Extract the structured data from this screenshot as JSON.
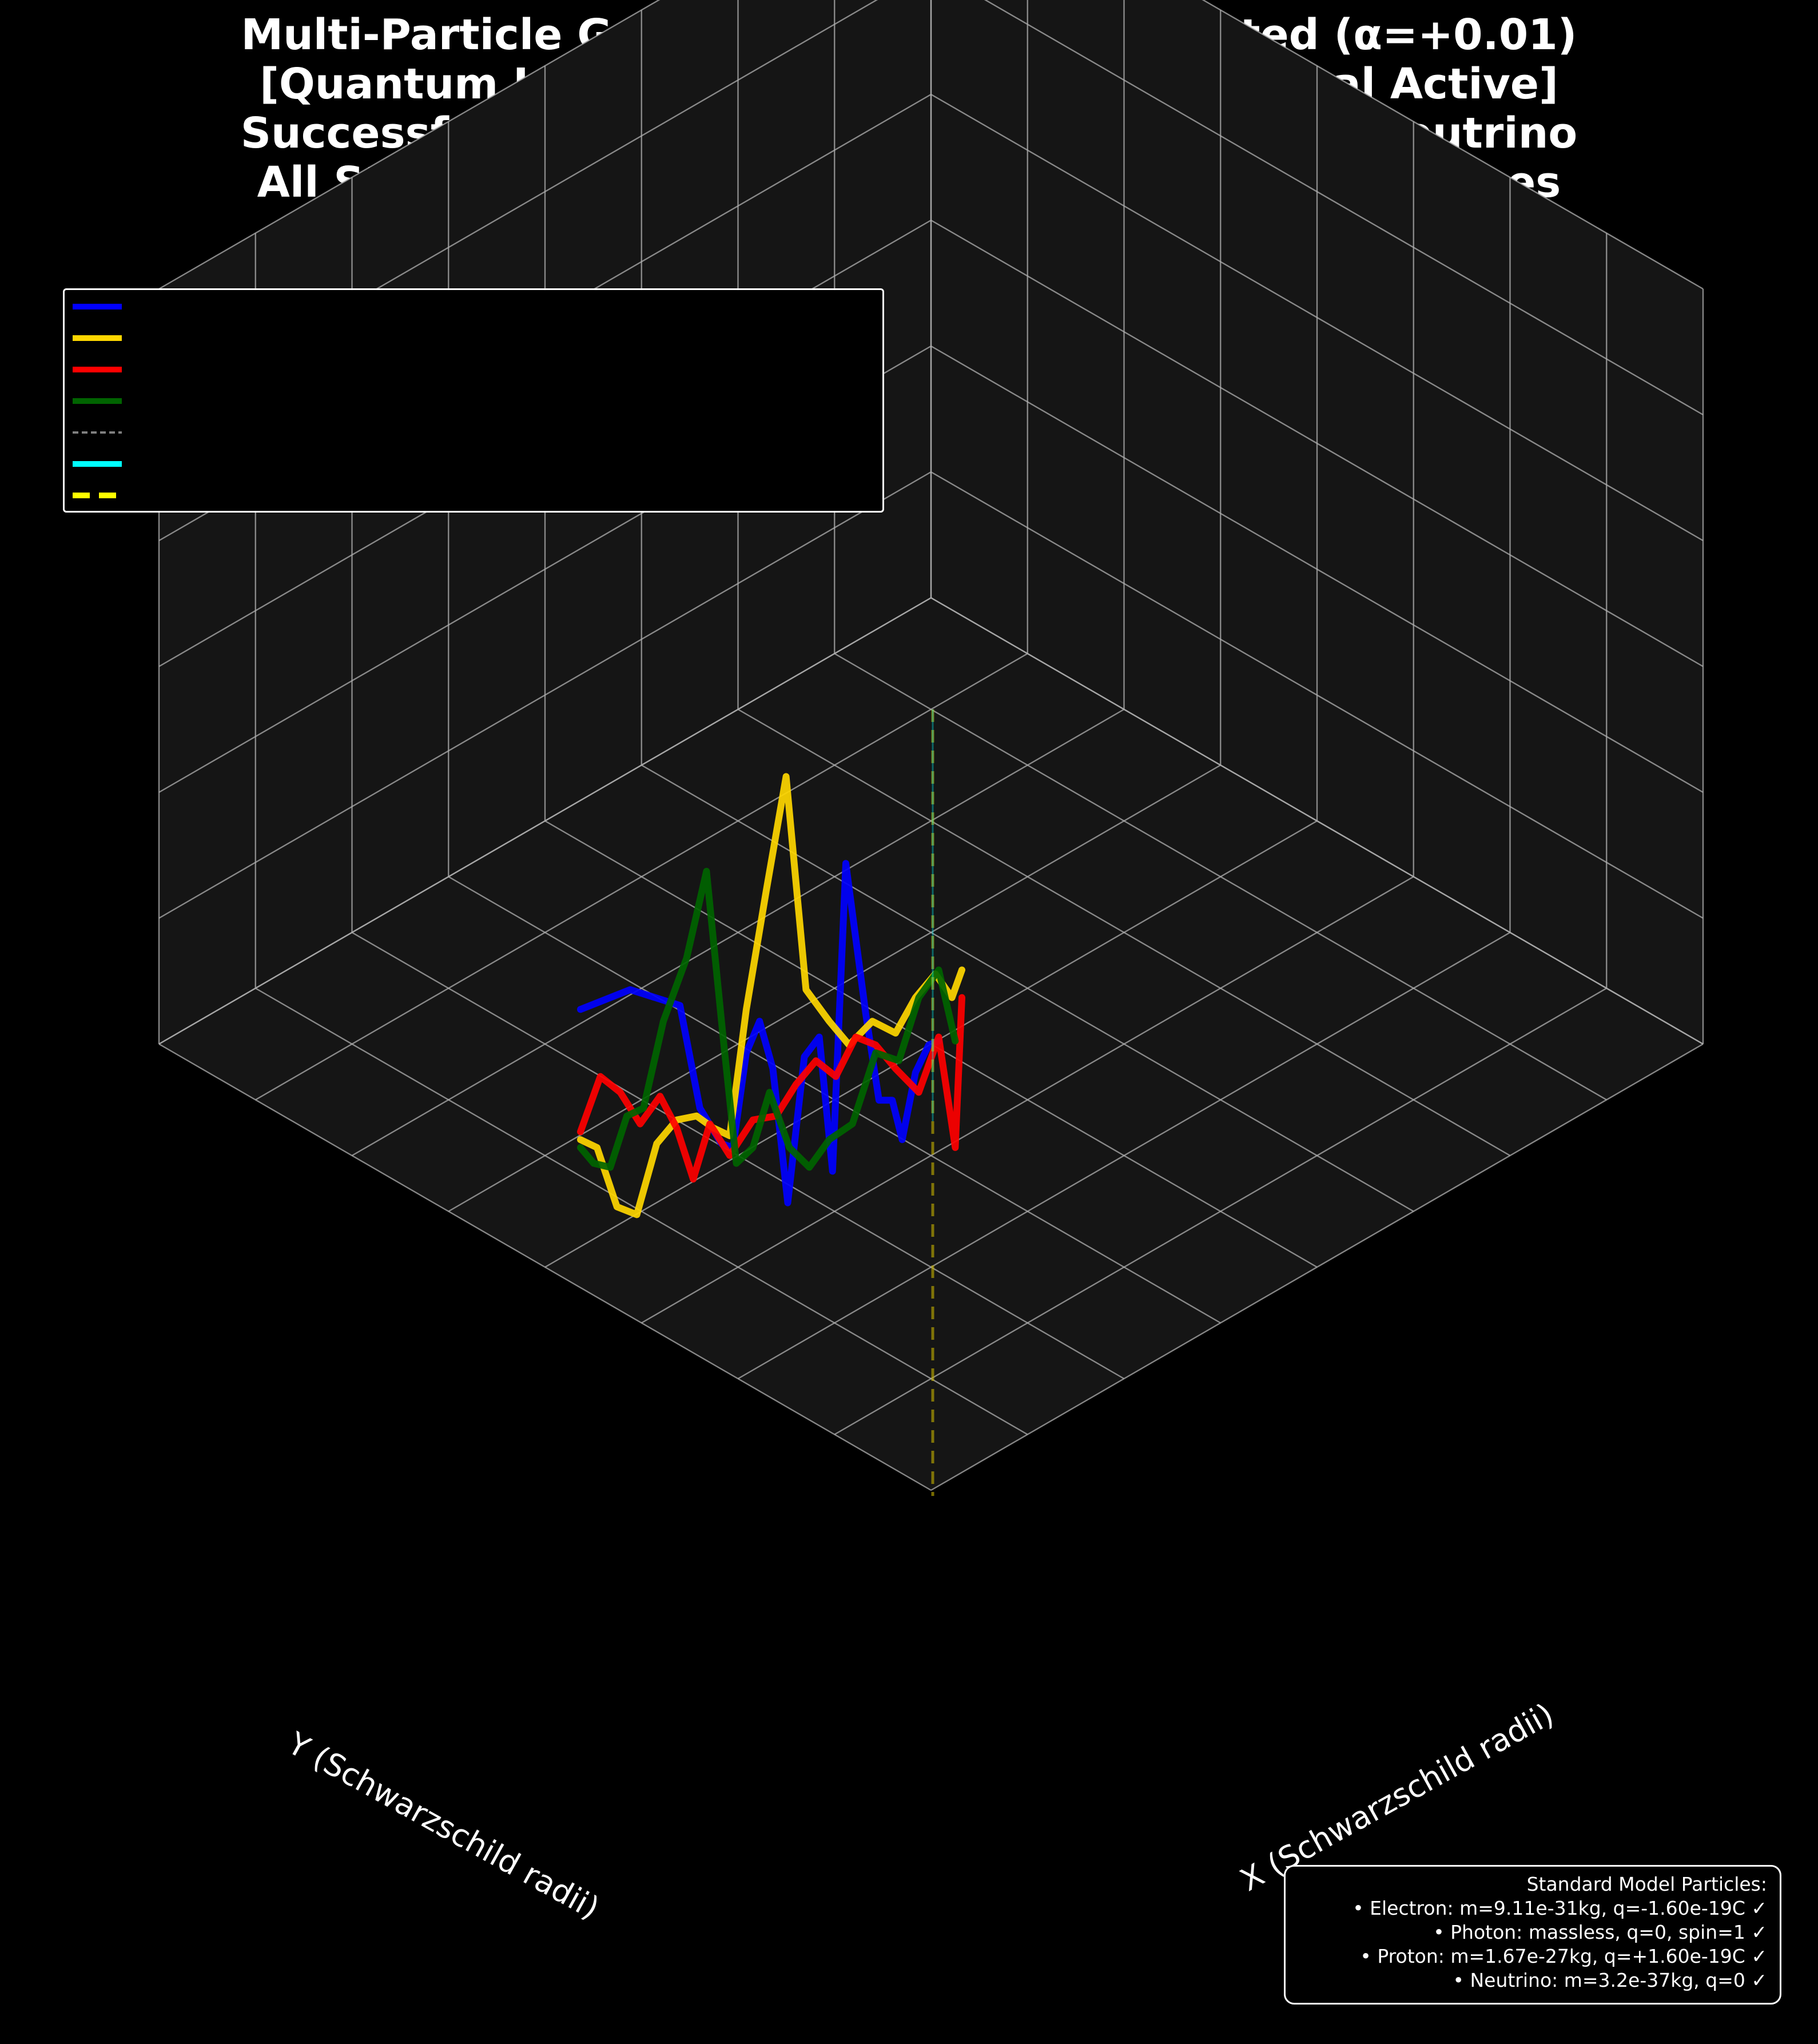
{
  "chart_data": {
    "type": "line",
    "projection": "3d",
    "title_lines": [
      "Multi-Particle Geodesics: Quantum Corrected (α=+0.01)",
      "[Quantum Lagrangian - Quantum Path Integral Active]",
      "Successfully plotted: electron, photon, proton, neutrino",
      "All Standard Model Particles with Exact Default Values"
    ],
    "xlabel": "X (Schwarzschild radii)",
    "ylabel": "Y (Schwarzschild radii)",
    "zlabel": "",
    "grid": true,
    "legend_placement": "top-left",
    "legend_entries": [
      {
        "name": "",
        "color": "#0000ff",
        "style": "solid"
      },
      {
        "name": "",
        "color": "#ffd700",
        "style": "solid"
      },
      {
        "name": "",
        "color": "#ff0000",
        "style": "solid"
      },
      {
        "name": "",
        "color": "#006400",
        "style": "solid"
      },
      {
        "name": "",
        "color": "#808080",
        "style": "dashed"
      },
      {
        "name": "",
        "color": "#00ffff",
        "style": "solid"
      },
      {
        "name": "",
        "color": "#ffff00",
        "style": "dashed"
      }
    ],
    "series": [
      {
        "color": "#0000ff",
        "points": [
          [
            0,
            -0.3,
            0.95
          ],
          [
            0,
            0.0,
            1.0
          ],
          [
            0,
            0.3,
            0.96
          ],
          [
            0,
            0.42,
            0.7
          ],
          [
            0,
            0.55,
            0.61
          ],
          [
            0,
            0.62,
            0.6
          ],
          [
            0,
            0.7,
            0.84
          ],
          [
            0,
            0.78,
            0.92
          ],
          [
            0,
            0.86,
            0.8
          ],
          [
            0,
            0.95,
            0.46
          ],
          [
            0,
            1.05,
            0.83
          ],
          [
            0,
            1.14,
            0.88
          ],
          [
            0,
            1.22,
            0.54
          ],
          [
            0,
            1.3,
            1.32
          ],
          [
            0,
            1.42,
            0.94
          ],
          [
            0,
            1.5,
            0.72
          ],
          [
            0,
            1.58,
            0.72
          ],
          [
            0,
            1.64,
            0.62
          ],
          [
            0,
            1.72,
            0.79
          ],
          [
            0,
            1.8,
            0.86
          ],
          [
            0,
            1.86,
            0.87
          ]
        ]
      },
      {
        "color": "#ffd700",
        "points": [
          [
            0,
            -0.3,
            0.62
          ],
          [
            0,
            -0.2,
            0.6
          ],
          [
            0,
            -0.08,
            0.45
          ],
          [
            0,
            0.04,
            0.43
          ],
          [
            0,
            0.16,
            0.61
          ],
          [
            0,
            0.28,
            0.67
          ],
          [
            0,
            0.4,
            0.68
          ],
          [
            0,
            0.5,
            0.65
          ],
          [
            0,
            0.6,
            0.63
          ],
          [
            0,
            0.7,
            0.95
          ],
          [
            0,
            0.82,
            1.25
          ],
          [
            0,
            0.94,
            1.54
          ],
          [
            0,
            1.06,
            1.0
          ],
          [
            0,
            1.2,
            0.92
          ],
          [
            0,
            1.32,
            0.86
          ],
          [
            0,
            1.46,
            0.92
          ],
          [
            0,
            1.6,
            0.89
          ],
          [
            0,
            1.72,
            0.98
          ],
          [
            0,
            1.84,
            1.04
          ],
          [
            0,
            1.94,
            0.98
          ],
          [
            0,
            2.0,
            1.05
          ]
        ]
      },
      {
        "color": "#ff0000",
        "points": [
          [
            0,
            -0.3,
            0.64
          ],
          [
            0,
            -0.18,
            0.78
          ],
          [
            0,
            -0.06,
            0.74
          ],
          [
            0,
            0.06,
            0.66
          ],
          [
            0,
            0.18,
            0.73
          ],
          [
            0,
            0.28,
            0.65
          ],
          [
            0,
            0.38,
            0.52
          ],
          [
            0,
            0.48,
            0.66
          ],
          [
            0,
            0.6,
            0.58
          ],
          [
            0,
            0.74,
            0.67
          ],
          [
            0,
            0.88,
            0.68
          ],
          [
            0,
            1.0,
            0.76
          ],
          [
            0,
            1.12,
            0.82
          ],
          [
            0,
            1.24,
            0.78
          ],
          [
            0,
            1.36,
            0.88
          ],
          [
            0,
            1.48,
            0.86
          ],
          [
            0,
            1.6,
            0.8
          ],
          [
            0,
            1.74,
            0.74
          ],
          [
            0,
            1.86,
            0.88
          ],
          [
            0,
            1.96,
            0.6
          ],
          [
            0,
            2.0,
            0.98
          ]
        ]
      },
      {
        "color": "#006400",
        "points": [
          [
            0,
            -0.3,
            0.6
          ],
          [
            0,
            -0.22,
            0.56
          ],
          [
            0,
            -0.12,
            0.55
          ],
          [
            0,
            -0.02,
            0.68
          ],
          [
            0,
            0.08,
            0.7
          ],
          [
            0,
            0.2,
            0.92
          ],
          [
            0,
            0.34,
            1.08
          ],
          [
            0,
            0.46,
            1.3
          ],
          [
            0,
            0.56,
            0.88
          ],
          [
            0,
            0.64,
            0.56
          ],
          [
            0,
            0.74,
            0.6
          ],
          [
            0,
            0.84,
            0.74
          ],
          [
            0,
            0.96,
            0.6
          ],
          [
            0,
            1.08,
            0.55
          ],
          [
            0,
            1.2,
            0.62
          ],
          [
            0,
            1.34,
            0.66
          ],
          [
            0,
            1.48,
            0.84
          ],
          [
            0,
            1.62,
            0.82
          ],
          [
            0,
            1.74,
            0.98
          ],
          [
            0,
            1.86,
            1.05
          ],
          [
            0,
            1.96,
            0.87
          ]
        ]
      }
    ]
  },
  "info_box": {
    "lines": [
      "Standard Model Particles:",
      "• Electron: m=9.11e-31kg, q=-1.60e-19C ✓",
      "• Photon: massless, q=0, spin=1 ✓",
      "• Proton: m=1.67e-27kg, q=+1.60e-19C ✓",
      "• Neutrino: m=3.2e-37kg, q=0 ✓"
    ]
  },
  "colors": {
    "background": "#000000",
    "pane": "#151515",
    "grid": "#b0b0b0",
    "text": "#ffffff"
  }
}
